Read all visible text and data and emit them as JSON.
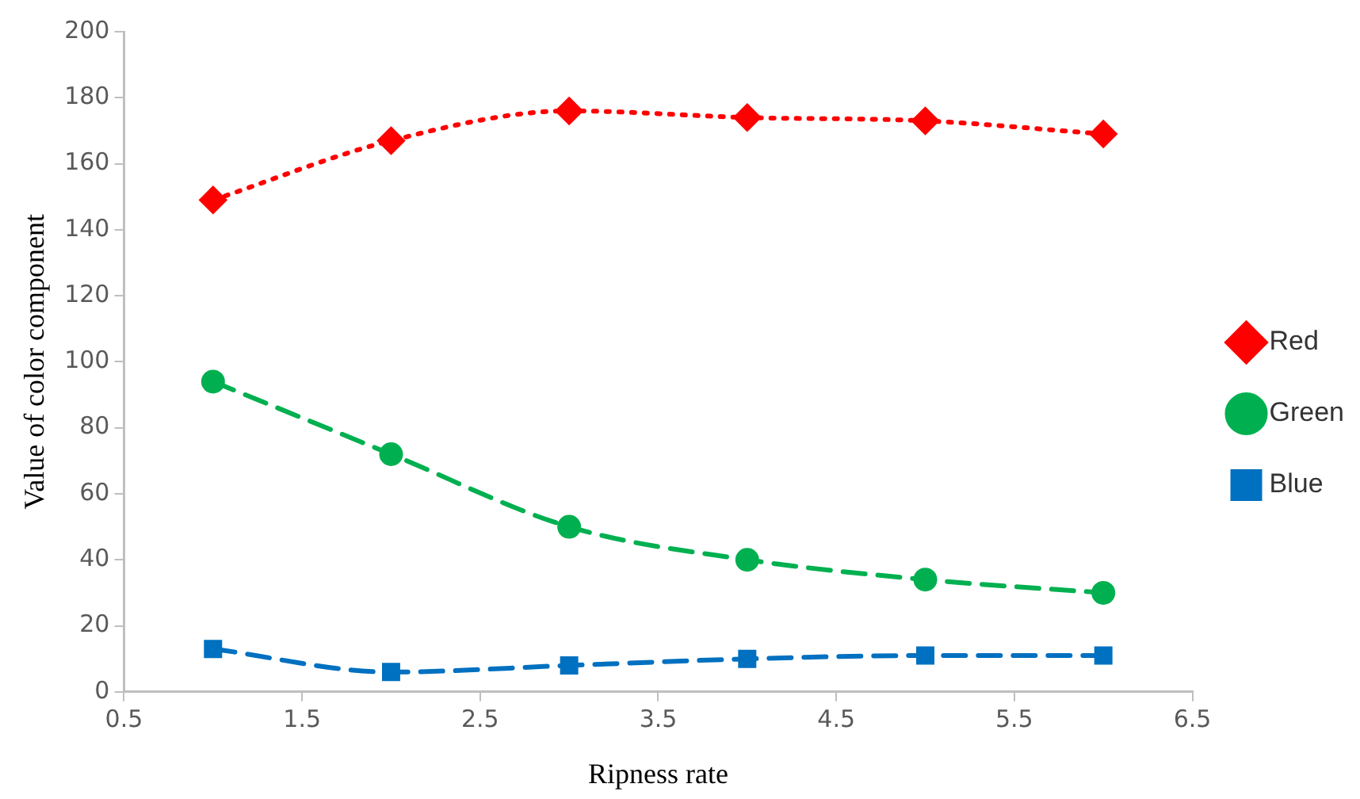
{
  "chart_data": {
    "type": "line",
    "xlabel": "Ripness rate",
    "ylabel": "Value of color component",
    "x": [
      1,
      2,
      3,
      4,
      5,
      6
    ],
    "xlim": [
      0.5,
      6.5
    ],
    "xticks": [
      0.5,
      1.5,
      2.5,
      3.5,
      4.5,
      5.5,
      6.5
    ],
    "ylim": [
      0,
      200
    ],
    "yticks": [
      0,
      20,
      40,
      60,
      80,
      100,
      120,
      140,
      160,
      180,
      200
    ],
    "grid": false,
    "legend": "right",
    "series": [
      {
        "name": "Red",
        "color": "#ff0000",
        "values": [
          149,
          167,
          176,
          174,
          173,
          169
        ],
        "marker": "diamond",
        "line_style": "dotted"
      },
      {
        "name": "Green",
        "color": "#00b050",
        "values": [
          94,
          72,
          50,
          40,
          34,
          30
        ],
        "marker": "circle",
        "line_style": "dashed"
      },
      {
        "name": "Blue",
        "color": "#0070c0",
        "values": [
          13,
          6,
          8,
          10,
          11,
          11
        ],
        "marker": "square",
        "line_style": "dashed"
      }
    ]
  }
}
